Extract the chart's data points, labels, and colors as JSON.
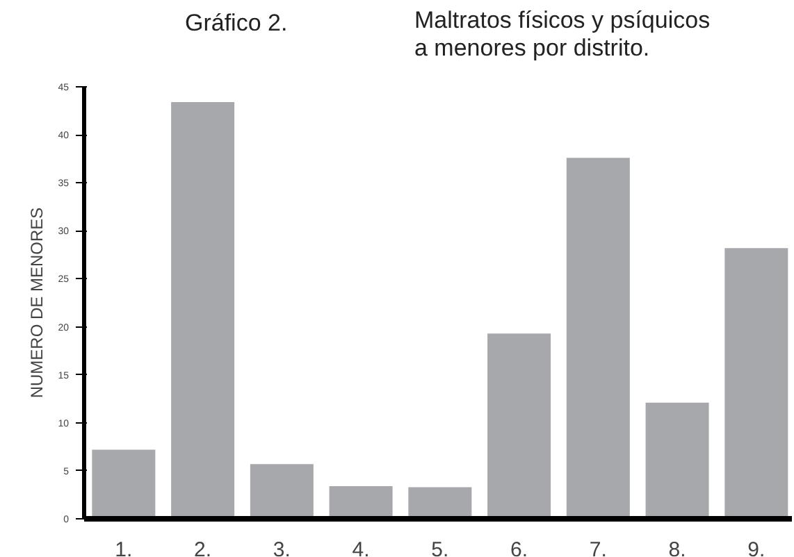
{
  "chart_data": {
    "type": "bar",
    "title": "Gráfico 2.",
    "subtitle": "Maltratos físicos y psíquicos\na menores por distrito.",
    "ylabel": "NUMERO DE MENORES",
    "categories": [
      "1.",
      "2.",
      "3.",
      "4.",
      "5.",
      "6.",
      "7.",
      "8.",
      "9."
    ],
    "values": [
      7.2,
      43.4,
      5.7,
      3.4,
      3.3,
      19.3,
      37.6,
      12.1,
      28.2
    ],
    "color": "#a7a8ab",
    "ylim": [
      0,
      45
    ],
    "yticks": [
      0,
      5,
      10,
      15,
      20,
      25,
      30,
      35,
      40,
      45
    ],
    "grid": false
  }
}
